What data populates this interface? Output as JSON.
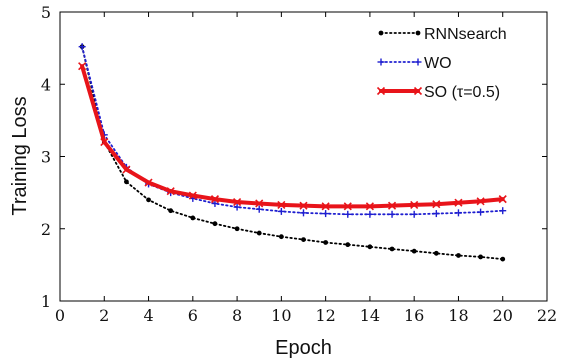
{
  "chart_data": {
    "type": "line",
    "xlabel": "Epoch",
    "ylabel": "Training Loss",
    "xlim": [
      0,
      22
    ],
    "ylim": [
      1,
      5
    ],
    "xticks": [
      "0",
      "2",
      "4",
      "6",
      "8",
      "10",
      "12",
      "14",
      "16",
      "18",
      "20",
      "22"
    ],
    "yticks": [
      "1",
      "2",
      "3",
      "4",
      "5"
    ],
    "grid": false,
    "legend_position": "top-right",
    "x": [
      1,
      2,
      3,
      4,
      5,
      6,
      7,
      8,
      9,
      10,
      11,
      12,
      13,
      14,
      15,
      16,
      17,
      18,
      19,
      20
    ],
    "series": [
      {
        "name": "RNNsearch",
        "color": "#000000",
        "style": "dotted",
        "marker": "dot",
        "values": [
          4.52,
          3.2,
          2.65,
          2.4,
          2.25,
          2.15,
          2.07,
          2.0,
          1.94,
          1.89,
          1.85,
          1.81,
          1.78,
          1.75,
          1.72,
          1.69,
          1.66,
          1.63,
          1.61,
          1.58
        ]
      },
      {
        "name": "WO",
        "color": "#1f1fd0",
        "style": "dotted",
        "marker": "plus",
        "values": [
          4.52,
          3.3,
          2.85,
          2.62,
          2.5,
          2.42,
          2.35,
          2.3,
          2.27,
          2.24,
          2.22,
          2.21,
          2.2,
          2.2,
          2.2,
          2.2,
          2.21,
          2.22,
          2.23,
          2.25
        ]
      },
      {
        "name": "SO (τ=0.5)",
        "color": "#e8141a",
        "style": "solid",
        "marker": "x",
        "values": [
          4.25,
          3.2,
          2.82,
          2.64,
          2.52,
          2.46,
          2.41,
          2.37,
          2.35,
          2.33,
          2.32,
          2.31,
          2.31,
          2.31,
          2.32,
          2.33,
          2.34,
          2.36,
          2.38,
          2.41
        ]
      }
    ]
  }
}
